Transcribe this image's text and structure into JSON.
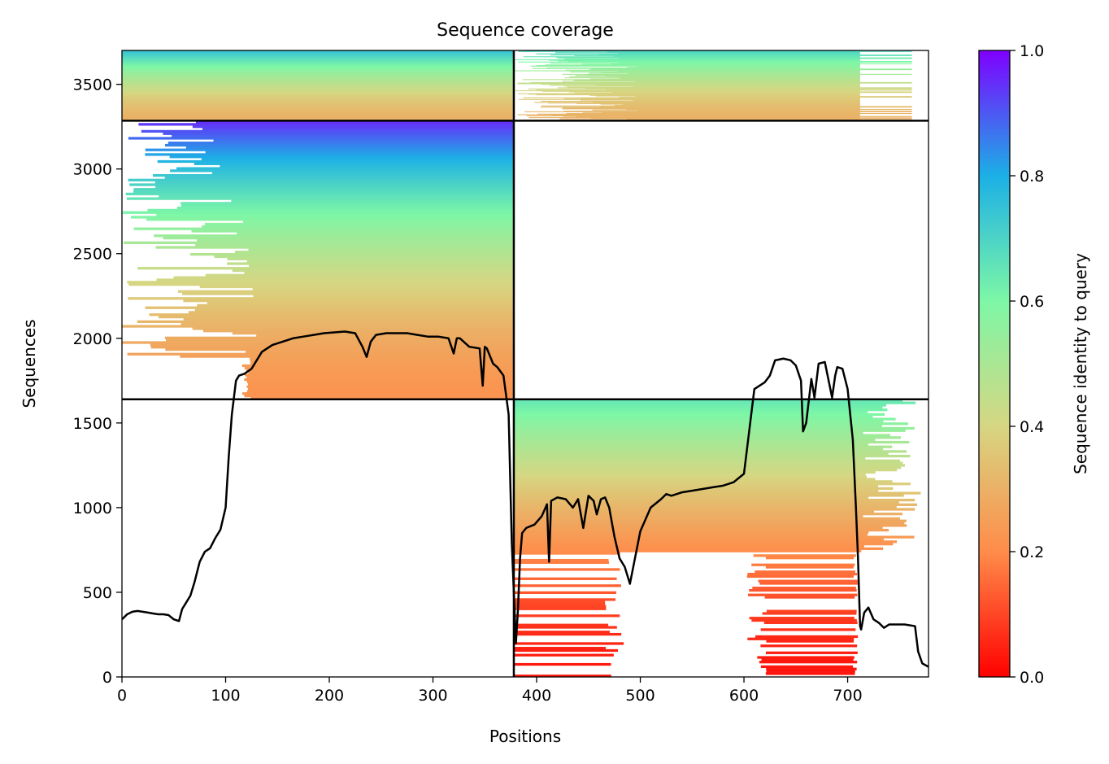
{
  "chart_data": {
    "type": "heatmap",
    "title": "Sequence coverage",
    "xlabel": "Positions",
    "ylabel": "Sequences",
    "xlim": [
      0,
      778
    ],
    "ylim": [
      0,
      3700
    ],
    "xticks": [
      0,
      100,
      200,
      300,
      400,
      500,
      600,
      700
    ],
    "yticks": [
      0,
      500,
      1000,
      1500,
      2000,
      2500,
      3000,
      3500
    ],
    "grid": false,
    "colorbar": {
      "label": "Sequence identity to query",
      "range": [
        0.0,
        1.0
      ],
      "ticks": [
        0.0,
        0.2,
        0.4,
        0.6,
        0.8,
        1.0
      ],
      "colormap": "rainbow_r",
      "stops": [
        "#ff0000",
        "#ff8c4a",
        "#d6d682",
        "#7df7a6",
        "#1cb0e6",
        "#7f00ff"
      ]
    },
    "chain_boundaries": {
      "x": [
        378
      ],
      "y": [
        1640,
        3285
      ]
    },
    "blocks": [
      {
        "x": [
          0,
          378
        ],
        "y": [
          3285,
          3700
        ],
        "identity_top": 0.75,
        "identity_bottom": 0.3,
        "coverage": "full"
      },
      {
        "x": [
          378,
          778
        ],
        "y": [
          3285,
          3700
        ],
        "identity_top": 0.7,
        "identity_bottom": 0.3,
        "coverage": "partial"
      },
      {
        "x": [
          0,
          378
        ],
        "y": [
          1640,
          3285
        ],
        "identity_top": 0.95,
        "identity_bottom": 0.22,
        "coverage": "partial"
      },
      {
        "x": [
          378,
          778
        ],
        "y": [
          0,
          1640
        ],
        "identity_top": 0.65,
        "identity_bottom": 0.03,
        "coverage": "partial"
      }
    ],
    "coverage_line": {
      "name": "",
      "x": [
        0,
        5,
        10,
        15,
        20,
        25,
        30,
        35,
        40,
        45,
        50,
        55,
        58,
        62,
        66,
        70,
        75,
        80,
        85,
        90,
        95,
        100,
        103,
        106,
        108,
        110,
        113,
        118,
        125,
        135,
        145,
        155,
        165,
        175,
        185,
        195,
        205,
        215,
        225,
        232,
        236,
        240,
        245,
        255,
        265,
        275,
        285,
        295,
        305,
        315,
        320,
        323,
        326,
        335,
        345,
        348,
        350,
        352,
        358,
        362,
        368,
        373,
        376,
        378,
        380,
        382,
        384,
        386,
        390,
        398,
        405,
        410,
        412,
        414,
        420,
        428,
        435,
        440,
        445,
        450,
        455,
        458,
        462,
        466,
        470,
        475,
        480,
        485,
        490,
        500,
        510,
        520,
        525,
        530,
        540,
        550,
        560,
        570,
        580,
        590,
        600,
        605,
        610,
        615,
        620,
        625,
        630,
        638,
        645,
        650,
        655,
        657,
        660,
        665,
        668,
        672,
        678,
        685,
        688,
        690,
        695,
        700,
        705,
        708,
        710,
        712,
        713,
        716,
        720,
        725,
        730,
        735,
        740,
        755,
        765,
        768,
        772,
        778
      ],
      "y": [
        340,
        370,
        385,
        390,
        385,
        380,
        375,
        370,
        370,
        365,
        340,
        330,
        400,
        440,
        480,
        560,
        680,
        740,
        760,
        820,
        870,
        1000,
        1300,
        1550,
        1650,
        1750,
        1780,
        1790,
        1820,
        1920,
        1960,
        1980,
        2000,
        2010,
        2020,
        2030,
        2035,
        2040,
        2030,
        1950,
        1890,
        1980,
        2020,
        2030,
        2030,
        2030,
        2020,
        2010,
        2010,
        2000,
        1910,
        2000,
        2000,
        1950,
        1940,
        1720,
        1950,
        1940,
        1850,
        1830,
        1780,
        1550,
        800,
        500,
        200,
        400,
        700,
        850,
        880,
        900,
        950,
        1020,
        680,
        1040,
        1060,
        1050,
        1000,
        1050,
        880,
        1070,
        1040,
        960,
        1050,
        1060,
        1000,
        830,
        700,
        650,
        550,
        860,
        1000,
        1050,
        1080,
        1070,
        1090,
        1100,
        1110,
        1120,
        1130,
        1150,
        1200,
        1450,
        1700,
        1720,
        1740,
        1780,
        1870,
        1880,
        1870,
        1840,
        1750,
        1450,
        1500,
        1760,
        1650,
        1850,
        1860,
        1650,
        1780,
        1830,
        1820,
        1700,
        1400,
        1000,
        700,
        300,
        280,
        380,
        410,
        340,
        320,
        290,
        310,
        310,
        300,
        150,
        80,
        60,
        50
      ]
    }
  }
}
